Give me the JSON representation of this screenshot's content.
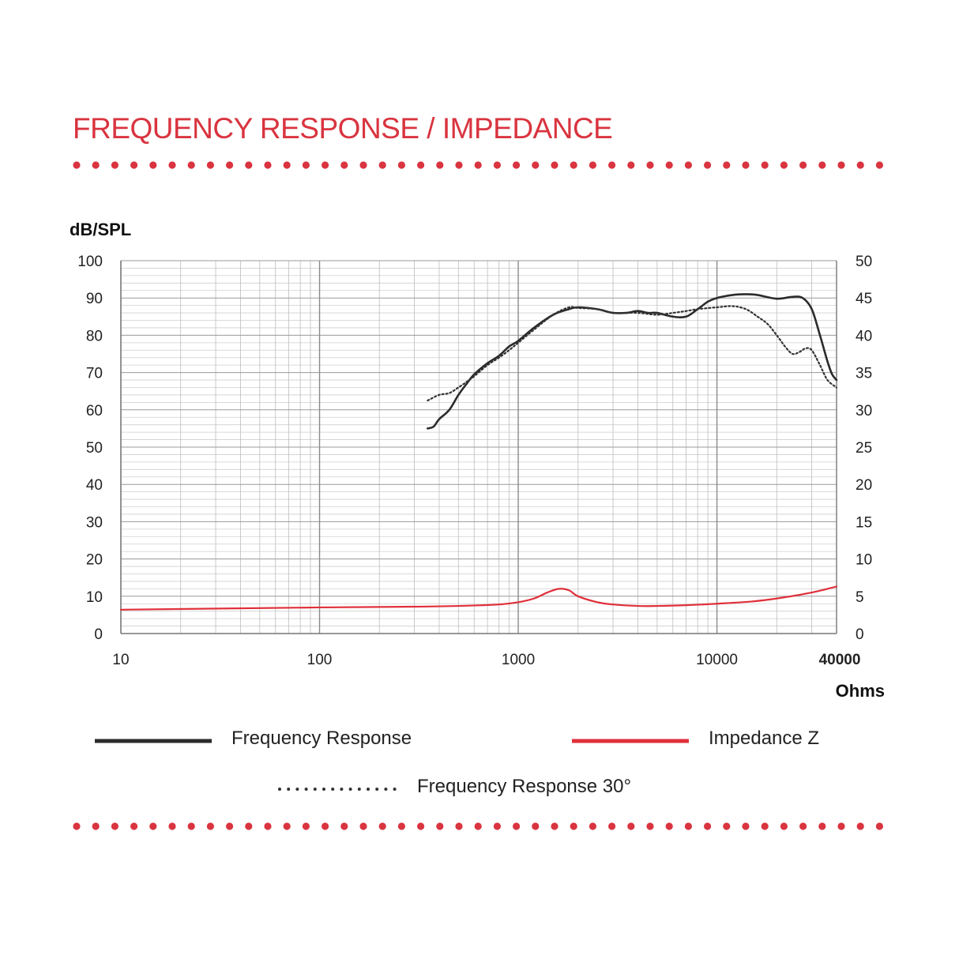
{
  "title": "FREQUENCY RESPONSE / IMPEDANCE",
  "colors": {
    "accent": "#d9343f",
    "frequency_response": "#2b2b2b",
    "frequency_response_30": "#333333",
    "impedance": "#e0303a",
    "grid": "#bdbdbd"
  },
  "chart_data": {
    "type": "line",
    "x_scale": "log",
    "xlim": [
      10,
      40000
    ],
    "ylim": [
      0,
      100
    ],
    "y2lim": [
      0,
      50
    ],
    "ylabel": "dB/SPL",
    "y2label": "Ohms",
    "x_ticks": [
      "10",
      "100",
      "1000",
      "10000",
      "40000"
    ],
    "y_ticks": [
      "0",
      "10",
      "20",
      "30",
      "40",
      "50",
      "60",
      "70",
      "80",
      "90",
      "100"
    ],
    "y2_ticks": [
      "0",
      "5",
      "10",
      "15",
      "20",
      "25",
      "30",
      "35",
      "40",
      "45",
      "50"
    ],
    "grid": true,
    "legend": [
      {
        "label": "Frequency Response",
        "style": "solid",
        "color": "#2b2b2b"
      },
      {
        "label": "Impedance Z",
        "style": "solid",
        "color": "#e0303a"
      },
      {
        "label": "Frequency Response 30°",
        "style": "dotted",
        "color": "#333333"
      }
    ],
    "series": [
      {
        "name": "Frequency Response",
        "axis": "left",
        "points": [
          [
            350,
            55
          ],
          [
            375,
            55.5
          ],
          [
            400,
            57.5
          ],
          [
            450,
            60
          ],
          [
            500,
            64
          ],
          [
            550,
            67
          ],
          [
            600,
            69.5
          ],
          [
            700,
            72.5
          ],
          [
            800,
            74.5
          ],
          [
            900,
            77
          ],
          [
            1000,
            78.5
          ],
          [
            1200,
            82
          ],
          [
            1500,
            85.5
          ],
          [
            1800,
            87
          ],
          [
            2000,
            87.5
          ],
          [
            2500,
            87
          ],
          [
            3000,
            86
          ],
          [
            3500,
            86
          ],
          [
            4000,
            86.5
          ],
          [
            4500,
            86
          ],
          [
            5000,
            86
          ],
          [
            6000,
            85
          ],
          [
            7000,
            85
          ],
          [
            8000,
            87
          ],
          [
            9000,
            89
          ],
          [
            10000,
            90
          ],
          [
            12000,
            90.8
          ],
          [
            14000,
            91
          ],
          [
            16000,
            90.8
          ],
          [
            20000,
            89.8
          ],
          [
            24000,
            90.3
          ],
          [
            27000,
            90
          ],
          [
            30000,
            87
          ],
          [
            33000,
            80
          ],
          [
            36000,
            73
          ],
          [
            38000,
            69.5
          ],
          [
            40000,
            68
          ]
        ]
      },
      {
        "name": "Frequency Response 30°",
        "axis": "left",
        "points": [
          [
            350,
            62.5
          ],
          [
            400,
            64
          ],
          [
            450,
            64.5
          ],
          [
            500,
            66
          ],
          [
            550,
            67.5
          ],
          [
            600,
            69
          ],
          [
            700,
            72
          ],
          [
            800,
            74
          ],
          [
            900,
            76
          ],
          [
            1000,
            78
          ],
          [
            1200,
            81.5
          ],
          [
            1500,
            85.5
          ],
          [
            1800,
            87.5
          ],
          [
            2000,
            87.3
          ],
          [
            2500,
            87
          ],
          [
            3000,
            86
          ],
          [
            4000,
            86
          ],
          [
            5000,
            85.5
          ],
          [
            6000,
            86
          ],
          [
            7000,
            86.5
          ],
          [
            8000,
            87
          ],
          [
            10000,
            87.5
          ],
          [
            12000,
            87.8
          ],
          [
            14000,
            87
          ],
          [
            16000,
            85
          ],
          [
            18000,
            83
          ],
          [
            20000,
            80
          ],
          [
            22000,
            77
          ],
          [
            24000,
            75
          ],
          [
            26000,
            75.5
          ],
          [
            28000,
            76.5
          ],
          [
            30000,
            76
          ],
          [
            33000,
            72
          ],
          [
            36000,
            68
          ],
          [
            40000,
            66
          ]
        ]
      },
      {
        "name": "Impedance Z",
        "axis": "right",
        "points": [
          [
            10,
            3.2
          ],
          [
            100,
            3.5
          ],
          [
            300,
            3.6
          ],
          [
            500,
            3.7
          ],
          [
            800,
            3.9
          ],
          [
            1000,
            4.2
          ],
          [
            1200,
            4.7
          ],
          [
            1400,
            5.5
          ],
          [
            1600,
            6.0
          ],
          [
            1800,
            5.8
          ],
          [
            2000,
            5.0
          ],
          [
            2500,
            4.2
          ],
          [
            3000,
            3.9
          ],
          [
            4000,
            3.7
          ],
          [
            5000,
            3.7
          ],
          [
            7000,
            3.8
          ],
          [
            10000,
            4.0
          ],
          [
            15000,
            4.3
          ],
          [
            20000,
            4.7
          ],
          [
            30000,
            5.5
          ],
          [
            40000,
            6.3
          ]
        ]
      }
    ]
  }
}
